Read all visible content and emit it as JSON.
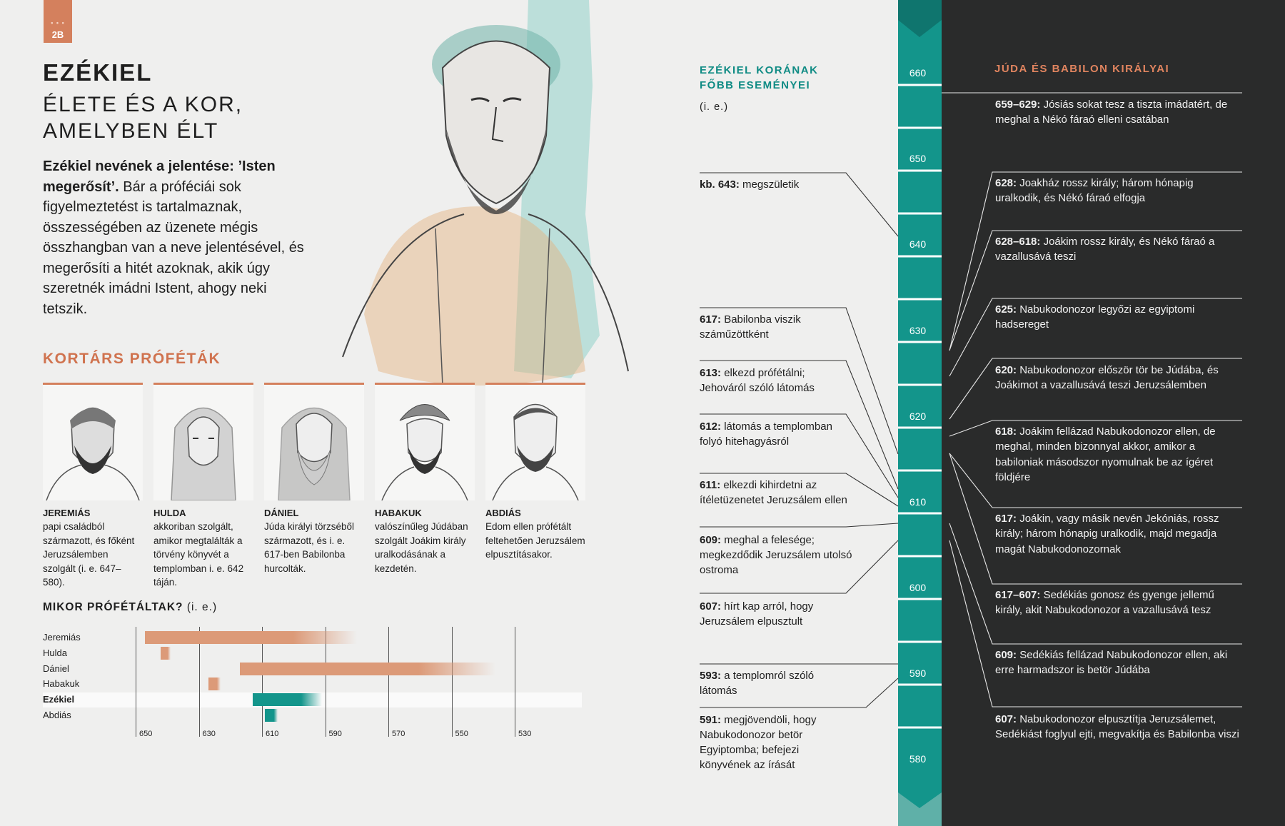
{
  "badge": {
    "label": "2B"
  },
  "header": {
    "name": "EZÉKIEL",
    "subtitle_line1": "ÉLETE ÉS A KOR,",
    "subtitle_line2": "AMELYBEN ÉLT"
  },
  "intro": {
    "bold": "Ezékiel nevének a jelentése: ’Isten megerősít’.",
    "text": "Bár a próféciái sok figyelmeztetést is tartalmaznak, összességében az üzenete mégis összhangban van a neve jelentésével, és megerősíti a hitét azoknak, akik úgy szeretnék imádni Istent, ahogy neki tetszik."
  },
  "contemporaries": {
    "title": "KORTÁRS PRÓFÉTÁK",
    "prophets": [
      {
        "name": "JEREMIÁS",
        "desc": "papi családból származott, és főként Jeruzsálemben szolgált (i. e. 647–580)."
      },
      {
        "name": "HULDA",
        "desc": "akkoriban szolgált, amikor megtalálták a törvény könyvét a templomban i. e. 642 táján."
      },
      {
        "name": "DÁNIEL",
        "desc": "Júda királyi törzséből származott, és i. e. 617-ben Babilonba hurcolták."
      },
      {
        "name": "HABAKUK",
        "desc": "valószínűleg Júdában szolgált Joákim király uralkodásának a kezdetén."
      },
      {
        "name": "ABDIÁS",
        "desc": "Edom ellen prófétált feltehetően Jeruzsálem elpusztításakor."
      }
    ]
  },
  "chart_data": {
    "type": "bar",
    "title": "MIKOR PRÓFÉTÁLTAK?",
    "title_suffix": "(i. e.)",
    "x_ticks": [
      "650",
      "630",
      "610",
      "590",
      "570",
      "550",
      "530"
    ],
    "xlim": [
      654,
      530
    ],
    "series": [
      {
        "name": "Jeremiás",
        "start": 647,
        "end": 580,
        "color": "#dc9a78"
      },
      {
        "name": "Hulda",
        "start": 642,
        "end": 639,
        "color": "#dc9a78"
      },
      {
        "name": "Dániel",
        "start": 617,
        "end": 536,
        "color": "#dc9a78"
      },
      {
        "name": "Habakuk",
        "start": 627,
        "end": 623,
        "color": "#dc9a78"
      },
      {
        "name": "Ezékiel",
        "start": 613,
        "end": 591,
        "color": "#13958b"
      },
      {
        "name": "Abdiás",
        "start": 609,
        "end": 605,
        "color": "#13958b"
      }
    ],
    "highlight": "Ezékiel"
  },
  "timeline": {
    "title_line1": "EZÉKIEL KORÁNAK",
    "title_line2": "FŐBB ESEMÉNYEI",
    "subtitle": "(i. e.)",
    "events": [
      {
        "year": "kb. 643:",
        "text": "megszületik"
      },
      {
        "year": "617:",
        "text": "Babilonba viszik száműzöttként"
      },
      {
        "year": "613:",
        "text": "elkezd prófétálni; Jehováról szóló látomás"
      },
      {
        "year": "612:",
        "text": "látomás a templomban folyó hitehagyásról"
      },
      {
        "year": "611:",
        "text": "elkezdi kihirdetni az ítéletüzenetet Jeruzsálem ellen"
      },
      {
        "year": "609:",
        "text": "meghal a felesége; megkezdődik Jeruzsálem utolsó ostroma"
      },
      {
        "year": "607:",
        "text": "hírt kap arról, hogy Jeruzsálem elpusztult"
      },
      {
        "year": "593:",
        "text": "a templomról szóló látomás"
      },
      {
        "year": "591:",
        "text": "megjövendöli, hogy Nabukodonozor betör Egyiptomba; befejezi könyvének az írását"
      }
    ],
    "ruler_labels": [
      "660",
      "650",
      "640",
      "630",
      "620",
      "610",
      "600",
      "590",
      "580"
    ]
  },
  "kings": {
    "title": "JÚDA ÉS BABILON KIRÁLYAI",
    "items": [
      {
        "year": "659–629:",
        "text": "Jósiás sokat tesz a tiszta imádatért, de meghal a Nékó fáraó elleni csatában"
      },
      {
        "year": "628:",
        "text": "Joakház rossz király; három hónapig uralkodik, és Nékó fáraó elfogja"
      },
      {
        "year": "628–618:",
        "text": "Joákim rossz király, és Nékó fáraó a vazallusává teszi"
      },
      {
        "year": "625:",
        "text": "Nabukodonozor legyőzi az egyiptomi hadsereget"
      },
      {
        "year": "620:",
        "text": "Nabukodonozor először tör be Júdába, és Joákimot a vazallusává teszi Jeruzsálemben"
      },
      {
        "year": "618:",
        "text": "Joákim fellázad Nabukodonozor ellen, de meghal, minden bizonnyal akkor, amikor a babiloniak másodszor nyomulnak be az ígéret földjére"
      },
      {
        "year": "617:",
        "text": "Joákin, vagy másik nevén Jekóniás, rossz király; három hónapig uralkodik, majd megadja magát Nabukodonozornak"
      },
      {
        "year": "617–607:",
        "text": "Sedékiás gonosz és gyenge jellemű király, akit Nabukodonozor a vazallusává tesz"
      },
      {
        "year": "609:",
        "text": "Sedékiás fellázad Nabukodonozor ellen, aki erre harmadszor is betör Júdába"
      },
      {
        "year": "607:",
        "text": "Nabukodonozor elpusztítja Jeruzsálemet, Sedékiást foglyul ejti, megvakítja és Babilonba viszi"
      }
    ]
  }
}
